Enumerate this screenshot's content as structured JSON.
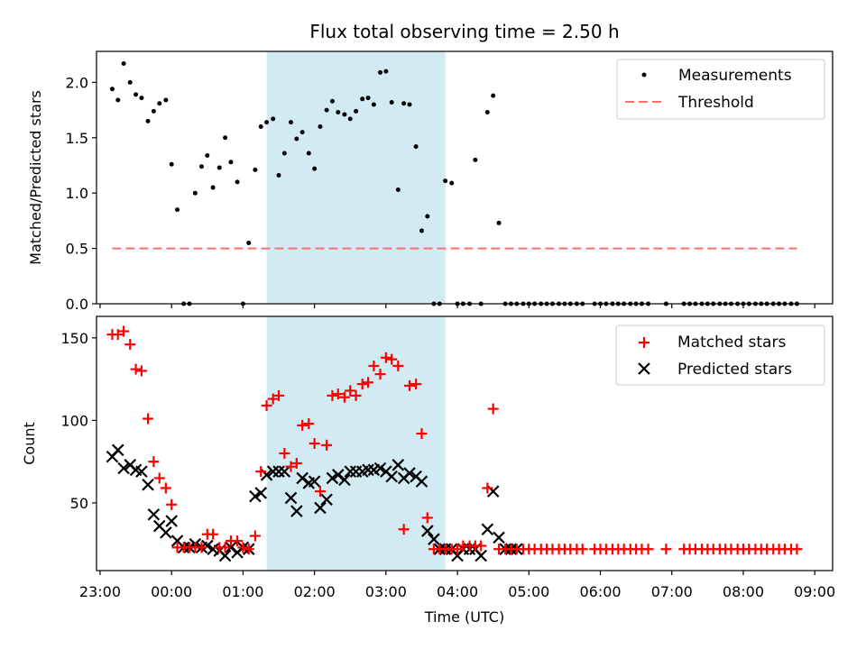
{
  "title": "Flux total observing time = 2.50 h",
  "colors": {
    "measurement": "#000000",
    "threshold": "#ff6f6f",
    "matched": "#ff0000",
    "predicted": "#000000",
    "span": "#add8e6"
  },
  "chart_data": [
    {
      "type": "scatter",
      "panel": "top",
      "ylabel": "Matched/Predicted stars",
      "xlabel": "",
      "xlim": [
        22.95,
        9.25
      ],
      "xlim_hours": [
        -1.05,
        9.25
      ],
      "ylim": [
        0,
        2.28
      ],
      "yticks": [
        0.0,
        0.5,
        1.0,
        1.5,
        2.0
      ],
      "yticklabels": [
        "0.0",
        "0.5",
        "1.0",
        "1.5",
        "2.0"
      ],
      "legend": {
        "placement": "top-right",
        "entries": [
          "Measurements",
          "Threshold"
        ]
      },
      "highlight_span_hours": [
        1.33,
        3.83
      ],
      "threshold": {
        "name": "Threshold",
        "y": 0.5,
        "x_hours": [
          -0.83,
          8.75
        ],
        "style": "dashed"
      },
      "series": [
        {
          "name": "Measurements",
          "x_hours": [
            -0.83,
            -0.75,
            -0.67,
            -0.58,
            -0.5,
            -0.42,
            -0.33,
            -0.25,
            -0.17,
            -0.08,
            0.0,
            0.08,
            0.17,
            0.25,
            0.33,
            0.42,
            0.5,
            0.58,
            0.67,
            0.75,
            0.83,
            0.92,
            1.0,
            1.08,
            1.17,
            1.25,
            1.33,
            1.42,
            1.5,
            1.58,
            1.67,
            1.75,
            1.83,
            1.92,
            2.0,
            2.08,
            2.17,
            2.25,
            2.33,
            2.42,
            2.5,
            2.58,
            2.67,
            2.75,
            2.83,
            2.92,
            3.0,
            3.08,
            3.17,
            3.25,
            3.33,
            3.42,
            3.5,
            3.58,
            3.67,
            3.75,
            3.83,
            3.92,
            4.0,
            4.08,
            4.17,
            4.25,
            4.33,
            4.42,
            4.5,
            4.58,
            4.67,
            4.75,
            4.83,
            4.92,
            5.0,
            5.08,
            5.17,
            5.25,
            5.33,
            5.42,
            5.5,
            5.58,
            5.67,
            5.75,
            5.92,
            6.0,
            6.08,
            6.17,
            6.25,
            6.33,
            6.42,
            6.5,
            6.58,
            6.67,
            6.92,
            7.17,
            7.25,
            7.33,
            7.42,
            7.5,
            7.58,
            7.67,
            7.75,
            7.83,
            7.92,
            8.0,
            8.08,
            8.17,
            8.25,
            8.33,
            8.42,
            8.5,
            8.58,
            8.67,
            8.75
          ],
          "y": [
            1.94,
            1.84,
            2.17,
            2.0,
            1.89,
            1.86,
            1.65,
            1.74,
            1.81,
            1.84,
            1.26,
            0.85,
            0.0,
            0.0,
            1.0,
            1.24,
            1.34,
            1.05,
            1.23,
            1.5,
            1.28,
            1.1,
            0.0,
            0.55,
            1.21,
            1.6,
            1.64,
            1.67,
            1.16,
            1.36,
            1.64,
            1.49,
            1.55,
            1.36,
            1.22,
            1.6,
            1.75,
            1.83,
            1.73,
            1.71,
            1.67,
            1.74,
            1.85,
            1.86,
            1.8,
            2.09,
            2.1,
            1.82,
            1.03,
            1.81,
            1.8,
            1.42,
            0.66,
            0.79,
            0.0,
            0.0,
            1.11,
            1.09,
            0.0,
            0.0,
            0.0,
            1.3,
            0.0,
            1.73,
            1.88,
            0.73,
            0.0,
            0.0,
            0.0,
            0.0,
            0.0,
            0.0,
            0.0,
            0.0,
            0.0,
            0.0,
            0.0,
            0.0,
            0.0,
            0.0,
            0.0,
            0.0,
            0.0,
            0.0,
            0.0,
            0.0,
            0.0,
            0.0,
            0.0,
            0.0,
            0.0,
            0.0,
            0.0,
            0.0,
            0.0,
            0.0,
            0.0,
            0.0,
            0.0,
            0.0,
            0.0,
            0.0,
            0.0,
            0.0,
            0.0,
            0.0,
            0.0,
            0.0,
            0.0,
            0.0,
            0.0
          ]
        }
      ]
    },
    {
      "type": "scatter",
      "panel": "bottom",
      "xlabel": "Time (UTC)",
      "ylabel": "Count",
      "xlim_hours": [
        -1.05,
        9.25
      ],
      "ylim": [
        9,
        163
      ],
      "yticks": [
        50,
        100,
        150
      ],
      "yticklabels": [
        "50",
        "100",
        "150"
      ],
      "xticks_hours": [
        -1,
        0,
        1,
        2,
        3,
        4,
        5,
        6,
        7,
        8,
        9
      ],
      "xticklabels": [
        "23:00",
        "00:00",
        "01:00",
        "02:00",
        "03:00",
        "04:00",
        "05:00",
        "06:00",
        "07:00",
        "08:00",
        "09:00"
      ],
      "legend": {
        "placement": "top-right",
        "entries": [
          "Matched stars",
          "Predicted stars"
        ]
      },
      "highlight_span_hours": [
        1.33,
        3.83
      ],
      "series": [
        {
          "name": "Matched stars",
          "marker": "plus",
          "x_hours": [
            -0.83,
            -0.75,
            -0.67,
            -0.58,
            -0.5,
            -0.42,
            -0.33,
            -0.25,
            -0.17,
            -0.08,
            0.0,
            0.08,
            0.17,
            0.25,
            0.33,
            0.42,
            0.5,
            0.58,
            0.67,
            0.75,
            0.83,
            0.92,
            1.0,
            1.08,
            1.17,
            1.25,
            1.33,
            1.42,
            1.5,
            1.58,
            1.67,
            1.75,
            1.83,
            1.92,
            2.0,
            2.08,
            2.17,
            2.25,
            2.33,
            2.42,
            2.5,
            2.58,
            2.67,
            2.75,
            2.83,
            2.92,
            3.0,
            3.08,
            3.17,
            3.25,
            3.33,
            3.42,
            3.5,
            3.58,
            3.67,
            3.75,
            3.83,
            3.92,
            4.0,
            4.08,
            4.17,
            4.25,
            4.33,
            4.42,
            4.5,
            4.58,
            4.67,
            4.75,
            4.83,
            4.92,
            5.0,
            5.08,
            5.17,
            5.25,
            5.33,
            5.42,
            5.5,
            5.58,
            5.67,
            5.75,
            5.92,
            6.0,
            6.08,
            6.17,
            6.25,
            6.33,
            6.42,
            6.5,
            6.58,
            6.67,
            6.92,
            7.17,
            7.25,
            7.33,
            7.42,
            7.5,
            7.58,
            7.67,
            7.75,
            7.83,
            7.92,
            8.0,
            8.08,
            8.17,
            8.25,
            8.33,
            8.42,
            8.5,
            8.58,
            8.67,
            8.75
          ],
          "y": [
            152,
            152,
            154,
            146,
            131,
            130,
            101,
            75,
            65,
            59,
            49,
            23,
            23,
            23,
            23,
            23,
            31,
            31,
            23,
            23,
            27,
            27,
            23,
            22,
            30,
            69,
            109,
            113,
            115,
            80,
            72,
            74,
            97,
            98,
            86,
            57,
            85,
            115,
            116,
            114,
            118,
            115,
            122,
            123,
            133,
            128,
            138,
            137,
            133,
            34,
            121,
            122,
            92,
            41,
            22,
            22,
            22,
            22,
            22,
            24,
            24,
            24,
            24,
            59,
            107,
            22,
            22,
            22,
            22,
            22,
            22,
            22,
            22,
            22,
            22,
            22,
            22,
            22,
            22,
            22,
            22,
            22,
            22,
            22,
            22,
            22,
            22,
            22,
            22,
            22,
            22,
            22,
            22,
            22,
            22,
            22,
            22,
            22,
            22,
            22,
            22,
            22,
            22,
            22,
            22,
            22,
            22,
            22,
            22,
            22,
            22
          ]
        },
        {
          "name": "Predicted stars",
          "marker": "x",
          "x_hours": [
            -0.83,
            -0.75,
            -0.67,
            -0.58,
            -0.5,
            -0.42,
            -0.33,
            -0.25,
            -0.17,
            -0.08,
            0.0,
            0.08,
            0.17,
            0.25,
            0.33,
            0.42,
            0.5,
            0.58,
            0.67,
            0.75,
            0.83,
            0.92,
            1.0,
            1.08,
            1.17,
            1.25,
            1.33,
            1.42,
            1.5,
            1.58,
            1.67,
            1.75,
            1.83,
            1.92,
            2.0,
            2.08,
            2.17,
            2.25,
            2.33,
            2.42,
            2.5,
            2.58,
            2.67,
            2.75,
            2.83,
            2.92,
            3.0,
            3.08,
            3.17,
            3.25,
            3.33,
            3.42,
            3.5,
            3.58,
            3.67,
            3.75,
            3.83,
            3.92,
            4.0,
            4.08,
            4.17,
            4.25,
            4.33,
            4.42,
            4.5,
            4.58,
            4.67,
            4.75,
            4.83
          ],
          "y": [
            78,
            82,
            71,
            73,
            70,
            69,
            61,
            43,
            36,
            32,
            39,
            27,
            23,
            23,
            25,
            23,
            24,
            22,
            21,
            18,
            23,
            20,
            23,
            22,
            54,
            56,
            67,
            69,
            69,
            69,
            53,
            45,
            65,
            62,
            63,
            47,
            52,
            65,
            67,
            64,
            69,
            69,
            69,
            70,
            70,
            71,
            69,
            66,
            73,
            65,
            68,
            66,
            63,
            33,
            28,
            22,
            22,
            22,
            18,
            22,
            22,
            22,
            18,
            34,
            57,
            29,
            22,
            22,
            22
          ]
        }
      ]
    }
  ]
}
